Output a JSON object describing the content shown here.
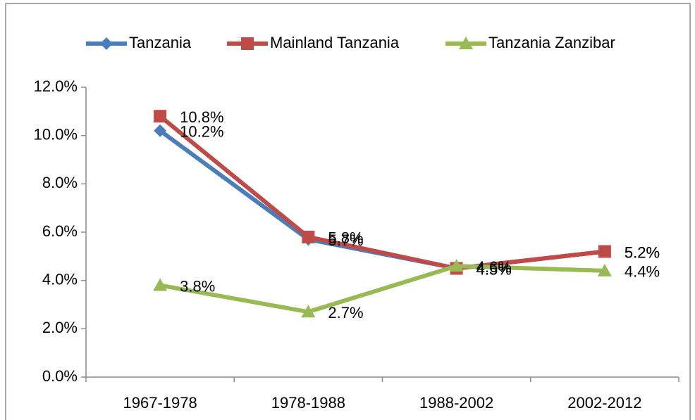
{
  "chart_data": {
    "type": "line",
    "categories": [
      "1967-1978",
      "1978-1988",
      "1988-2002",
      "2002-2012"
    ],
    "series": [
      {
        "name": "Tanzania",
        "color": "#4a7ebb",
        "values": [
          10.2,
          5.7,
          4.5,
          5.2
        ],
        "value_labels": [
          "10.2%",
          "5.7%",
          "4.5%",
          "5.2%"
        ]
      },
      {
        "name": "Mainland Tanzania",
        "color": "#be4b48",
        "values": [
          10.8,
          5.8,
          4.5,
          5.2
        ],
        "value_labels": [
          "10.8%",
          "5.8%",
          "4.5%",
          "5.2%"
        ]
      },
      {
        "name": "Tanzania Zanzibar",
        "color": "#98b954",
        "values": [
          3.8,
          2.7,
          4.6,
          4.4
        ],
        "value_labels": [
          "3.8%",
          "2.7%",
          "4.6%",
          "4.4%"
        ]
      }
    ],
    "ylim": [
      0,
      12
    ],
    "yticks": [
      {
        "value": 0,
        "label": "0.0%"
      },
      {
        "value": 2,
        "label": "2.0%"
      },
      {
        "value": 4,
        "label": "4.0%"
      },
      {
        "value": 6,
        "label": "6.0%"
      },
      {
        "value": 8,
        "label": "8.0%"
      },
      {
        "value": 10,
        "label": "10.0%"
      },
      {
        "value": 12,
        "label": "12.0%"
      }
    ],
    "legend": "top"
  }
}
